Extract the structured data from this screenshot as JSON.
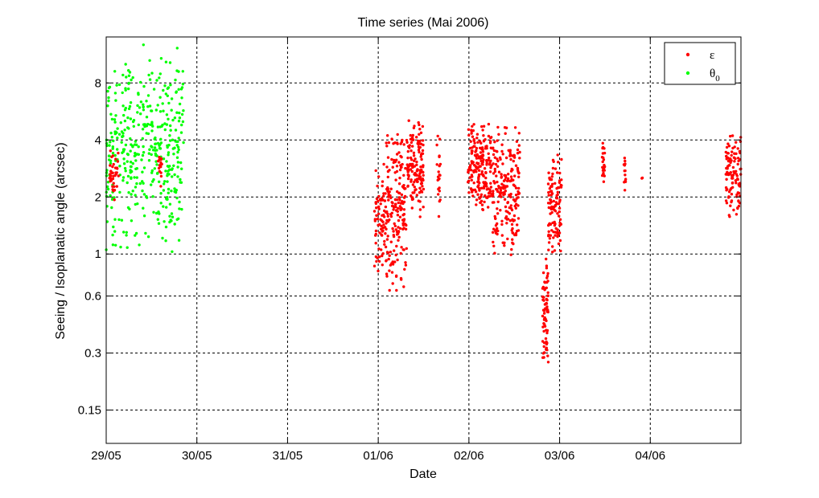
{
  "chart_data": {
    "type": "scatter",
    "title": "Time series (Mai 2006)",
    "xlabel": "Date",
    "ylabel": "Seeing / Isoplanatic angle (arcsec)",
    "y_scale": "log",
    "ylim": [
      0.1,
      14
    ],
    "xlim": [
      "2006-05-29 00:00",
      "2006-06-04 23:59"
    ],
    "x_ticks": [
      "29/05",
      "30/05",
      "31/05",
      "01/06",
      "02/06",
      "03/06",
      "04/06"
    ],
    "y_ticks": [
      "0.15",
      "0.3",
      "0.6",
      "1",
      "2",
      "4",
      "8"
    ],
    "grid": true,
    "legend_position": "top-right",
    "series": [
      {
        "name": "ε",
        "color": "#ff0000",
        "clusters": [
          {
            "x_start": "2006-05-29 00:45",
            "x_end": "2006-05-29 03:15",
            "y_min": 1.8,
            "y_max": 3.8,
            "count": 40
          },
          {
            "x_start": "2006-05-29 13:45",
            "x_end": "2006-05-29 14:45",
            "y_min": 2.2,
            "y_max": 3.5,
            "count": 15
          },
          {
            "x_start": "2006-05-31 23:00",
            "x_end": "2006-06-01 02:00",
            "y_min": 0.75,
            "y_max": 3.2,
            "count": 70
          },
          {
            "x_start": "2006-06-01 02:00",
            "x_end": "2006-06-01 07:30",
            "y_min": 0.6,
            "y_max": 5.0,
            "count": 180
          },
          {
            "x_start": "2006-06-01 07:30",
            "x_end": "2006-06-01 12:00",
            "y_min": 1.5,
            "y_max": 5.2,
            "count": 140
          },
          {
            "x_start": "2006-06-01 15:30",
            "x_end": "2006-06-01 16:30",
            "y_min": 1.4,
            "y_max": 4.6,
            "count": 22
          },
          {
            "x_start": "2006-06-01 23:45",
            "x_end": "2006-06-02 06:00",
            "y_min": 1.6,
            "y_max": 5.2,
            "count": 200
          },
          {
            "x_start": "2006-06-02 06:00",
            "x_end": "2006-06-02 13:30",
            "y_min": 0.9,
            "y_max": 5.2,
            "count": 200
          },
          {
            "x_start": "2006-06-02 19:30",
            "x_end": "2006-06-02 21:00",
            "y_min": 0.25,
            "y_max": 1.0,
            "count": 70
          },
          {
            "x_start": "2006-06-02 21:00",
            "x_end": "2006-06-03 00:30",
            "y_min": 0.9,
            "y_max": 3.8,
            "count": 110
          },
          {
            "x_start": "2006-06-03 11:15",
            "x_end": "2006-06-03 12:00",
            "y_min": 2.3,
            "y_max": 4.0,
            "count": 25
          },
          {
            "x_start": "2006-06-03 17:00",
            "x_end": "2006-06-03 17:30",
            "y_min": 1.9,
            "y_max": 3.5,
            "count": 14
          },
          {
            "x_start": "2006-06-03 21:45",
            "x_end": "2006-06-03 22:00",
            "y_min": 2.5,
            "y_max": 2.6,
            "count": 2
          },
          {
            "x_start": "2006-06-04 20:00",
            "x_end": "2006-06-04 23:59",
            "y_min": 1.4,
            "y_max": 4.8,
            "count": 110
          }
        ]
      },
      {
        "name": "θ0",
        "color": "#00ff00",
        "clusters": [
          {
            "x_start": "2006-05-29 00:00",
            "x_end": "2006-05-29 20:30",
            "y_min": 0.95,
            "y_max": 13.5,
            "count": 420
          }
        ]
      }
    ]
  },
  "legend": {
    "entries": [
      {
        "symbol": "ε",
        "subscript": "",
        "color": "#ff0000"
      },
      {
        "symbol": "θ",
        "subscript": "0",
        "color": "#00ff00"
      }
    ]
  }
}
